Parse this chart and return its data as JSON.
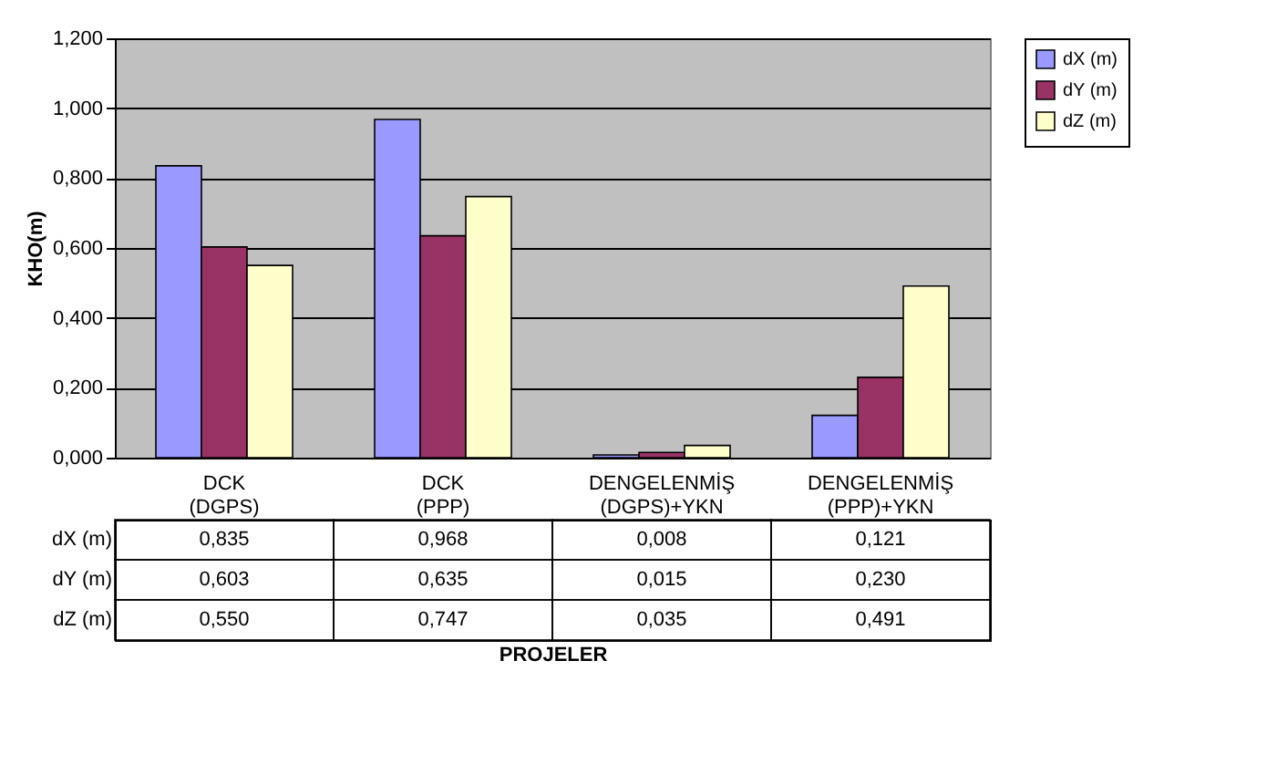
{
  "chart_data": {
    "type": "bar",
    "annotations": [
      "PROJELER"
    ],
    "ylabel": "KHO(m)",
    "categories": [
      "DCK (DGPS)",
      "DCK (PPP)",
      "DENGELENMİŞ (DGPS)+YKN",
      "DENGELENMİŞ (PPP)+YKN"
    ],
    "series": [
      {
        "name": "dX (m)",
        "color": "#9999ff",
        "values": [
          0.835,
          0.968,
          0.008,
          0.121
        ],
        "value_labels": [
          "0,835",
          "0,968",
          "0,008",
          "0,121"
        ]
      },
      {
        "name": "dY (m)",
        "color": "#993366",
        "values": [
          0.603,
          0.635,
          0.015,
          0.23
        ],
        "value_labels": [
          "0,603",
          "0,635",
          "0,015",
          "0,230"
        ]
      },
      {
        "name": "dZ (m)",
        "color": "#ffffcc",
        "values": [
          0.55,
          0.747,
          0.035,
          0.491
        ],
        "value_labels": [
          "0,550",
          "0,747",
          "0,035",
          "0,491"
        ]
      }
    ],
    "ylim": [
      0,
      1.2
    ],
    "yticks": [
      {
        "value": 0,
        "label": "0,000"
      },
      {
        "value": 0.2,
        "label": "0,200"
      },
      {
        "value": 0.4,
        "label": "0,400"
      },
      {
        "value": 0.6,
        "label": "0,600"
      },
      {
        "value": 0.8,
        "label": "0,800"
      },
      {
        "value": 1.0,
        "label": "1,000"
      },
      {
        "value": 1.2,
        "label": "1,200"
      }
    ],
    "grid": "y",
    "legend": "right"
  }
}
